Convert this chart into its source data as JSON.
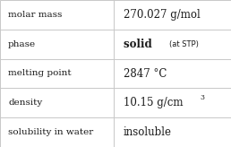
{
  "rows": [
    {
      "label": "molar mass",
      "value": "270.027 g/mol",
      "type": "plain"
    },
    {
      "label": "phase",
      "value": "solid",
      "type": "phase",
      "suffix": "(at STP)"
    },
    {
      "label": "melting point",
      "value": "2847 °C",
      "type": "plain"
    },
    {
      "label": "density",
      "value": "10.15 g/cm",
      "type": "super",
      "superscript": "3"
    },
    {
      "label": "solubility in water",
      "value": "insoluble",
      "type": "plain"
    }
  ],
  "col_split": 0.493,
  "bg_color": "#ffffff",
  "border_color": "#c8c8c8",
  "text_color": "#1a1a1a",
  "label_fontsize": 7.5,
  "value_fontsize": 8.5,
  "suffix_fontsize": 6.0,
  "super_fontsize": 5.5,
  "label_font": "DejaVu Serif",
  "value_font": "DejaVu Serif"
}
